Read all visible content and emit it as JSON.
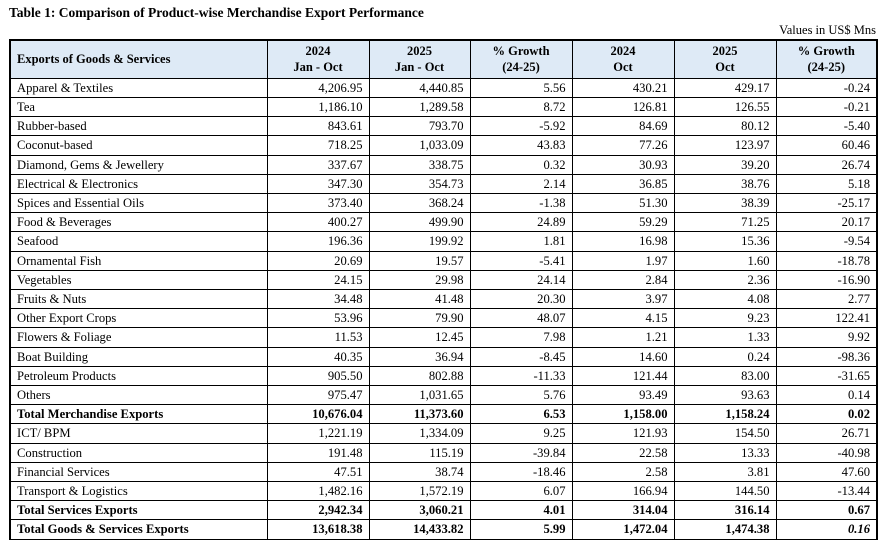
{
  "title": "Table 1: Comparison of Product-wise Merchandise Export Performance",
  "units_note": "Values in US$ Mns",
  "colors": {
    "header_bg": "#deeaf6",
    "border": "#000000",
    "text": "#000000"
  },
  "table": {
    "header": {
      "col0": "Exports of Goods & Services",
      "cols": [
        {
          "line1": "2024",
          "line2": "Jan - Oct"
        },
        {
          "line1": "2025",
          "line2": "Jan - Oct"
        },
        {
          "line1": "% Growth",
          "line2": "(24-25)"
        },
        {
          "line1": "2024",
          "line2": "Oct"
        },
        {
          "line1": "2025",
          "line2": "Oct"
        },
        {
          "line1": "% Growth",
          "line2": "(24-25)"
        }
      ]
    },
    "rows": [
      {
        "label": "Apparel & Textiles",
        "values": [
          "4,206.95",
          "4,440.85",
          "5.56",
          "430.21",
          "429.17",
          "-0.24"
        ],
        "bold": false
      },
      {
        "label": "Tea",
        "values": [
          "1,186.10",
          "1,289.58",
          "8.72",
          "126.81",
          "126.55",
          "-0.21"
        ],
        "bold": false
      },
      {
        "label": "Rubber-based",
        "values": [
          "843.61",
          "793.70",
          "-5.92",
          "84.69",
          "80.12",
          "-5.40"
        ],
        "bold": false
      },
      {
        "label": "Coconut-based",
        "values": [
          "718.25",
          "1,033.09",
          "43.83",
          "77.26",
          "123.97",
          "60.46"
        ],
        "bold": false
      },
      {
        "label": "Diamond, Gems & Jewellery",
        "values": [
          "337.67",
          "338.75",
          "0.32",
          "30.93",
          "39.20",
          "26.74"
        ],
        "bold": false
      },
      {
        "label": "Electrical & Electronics",
        "values": [
          "347.30",
          "354.73",
          "2.14",
          "36.85",
          "38.76",
          "5.18"
        ],
        "bold": false
      },
      {
        "label": "Spices and Essential Oils",
        "values": [
          "373.40",
          "368.24",
          "-1.38",
          "51.30",
          "38.39",
          "-25.17"
        ],
        "bold": false
      },
      {
        "label": "Food & Beverages",
        "values": [
          "400.27",
          "499.90",
          "24.89",
          "59.29",
          "71.25",
          "20.17"
        ],
        "bold": false
      },
      {
        "label": "Seafood",
        "values": [
          "196.36",
          "199.92",
          "1.81",
          "16.98",
          "15.36",
          "-9.54"
        ],
        "bold": false
      },
      {
        "label": "Ornamental Fish",
        "values": [
          "20.69",
          "19.57",
          "-5.41",
          "1.97",
          "1.60",
          "-18.78"
        ],
        "bold": false
      },
      {
        "label": "Vegetables",
        "values": [
          "24.15",
          "29.98",
          "24.14",
          "2.84",
          "2.36",
          "-16.90"
        ],
        "bold": false
      },
      {
        "label": "Fruits & Nuts",
        "values": [
          "34.48",
          "41.48",
          "20.30",
          "3.97",
          "4.08",
          "2.77"
        ],
        "bold": false
      },
      {
        "label": "Other Export Crops",
        "values": [
          "53.96",
          "79.90",
          "48.07",
          "4.15",
          "9.23",
          "122.41"
        ],
        "bold": false
      },
      {
        "label": "Flowers & Foliage",
        "values": [
          "11.53",
          "12.45",
          "7.98",
          "1.21",
          "1.33",
          "9.92"
        ],
        "bold": false
      },
      {
        "label": "Boat Building",
        "values": [
          "40.35",
          "36.94",
          "-8.45",
          "14.60",
          "0.24",
          "-98.36"
        ],
        "bold": false
      },
      {
        "label": "Petroleum Products",
        "values": [
          "905.50",
          "802.88",
          "-11.33",
          "121.44",
          "83.00",
          "-31.65"
        ],
        "bold": false
      },
      {
        "label": "Others",
        "values": [
          "975.47",
          "1,031.65",
          "5.76",
          "93.49",
          "93.63",
          "0.14"
        ],
        "bold": false
      },
      {
        "label": "Total Merchandise Exports",
        "values": [
          "10,676.04",
          "11,373.60",
          "6.53",
          "1,158.00",
          "1,158.24",
          "0.02"
        ],
        "bold": true
      },
      {
        "label": "ICT/ BPM",
        "values": [
          "1,221.19",
          "1,334.09",
          "9.25",
          "121.93",
          "154.50",
          "26.71"
        ],
        "bold": false
      },
      {
        "label": "Construction",
        "values": [
          "191.48",
          "115.19",
          "-39.84",
          "22.58",
          "13.33",
          "-40.98"
        ],
        "bold": false
      },
      {
        "label": "Financial Services",
        "values": [
          "47.51",
          "38.74",
          "-18.46",
          "2.58",
          "3.81",
          "47.60"
        ],
        "bold": false
      },
      {
        "label": "Transport & Logistics",
        "values": [
          "1,482.16",
          "1,572.19",
          "6.07",
          "166.94",
          "144.50",
          "-13.44"
        ],
        "bold": false
      },
      {
        "label": "Total Services Exports",
        "values": [
          "2,942.34",
          "3,060.21",
          "4.01",
          "314.04",
          "316.14",
          "0.67"
        ],
        "bold": true
      },
      {
        "label": "Total Goods & Services Exports",
        "values": [
          "13,618.38",
          "14,433.82",
          "5.99",
          "1,472.04",
          "1,474.38",
          "0.16"
        ],
        "bold": true,
        "italic_last": true
      }
    ]
  }
}
